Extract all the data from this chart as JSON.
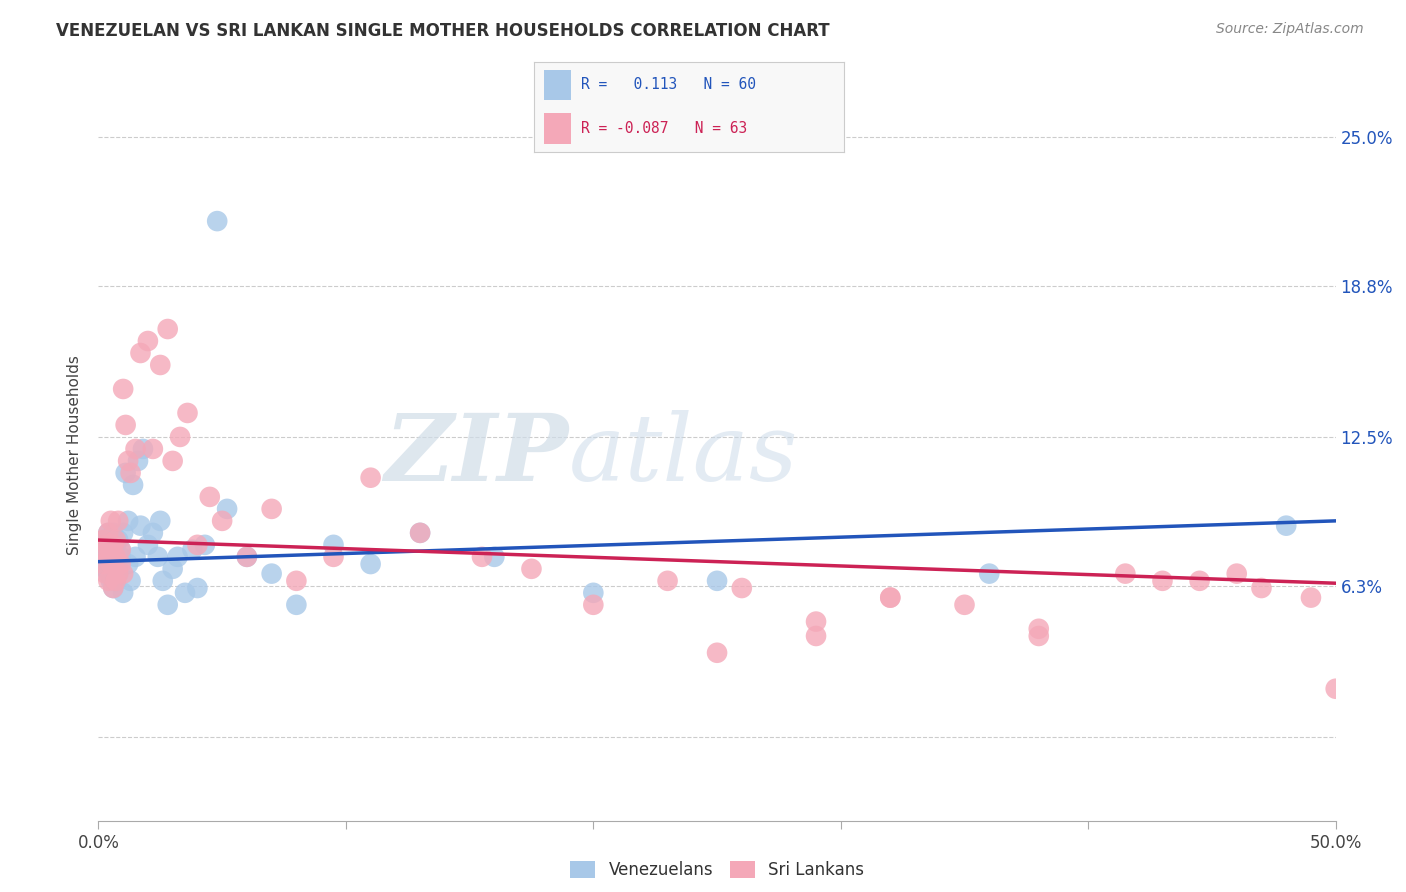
{
  "title": "VENEZUELAN VS SRI LANKAN SINGLE MOTHER HOUSEHOLDS CORRELATION CHART",
  "source": "Source: ZipAtlas.com",
  "ylabel": "Single Mother Households",
  "venezuelan_color": "#a8c8e8",
  "srilanka_color": "#f4a8b8",
  "venezuelan_line_color": "#2255bb",
  "srilanka_line_color": "#cc2255",
  "watermark_zip": "ZIP",
  "watermark_atlas": "atlas",
  "venezuelan_label": "Venezuelans",
  "srilanka_label": "Sri Lankans",
  "xlim": [
    0.0,
    0.5
  ],
  "ylim": [
    -0.035,
    0.27
  ],
  "ytick_positions": [
    0.0,
    0.063,
    0.125,
    0.188,
    0.25
  ],
  "ytick_labels": [
    "",
    "6.3%",
    "12.5%",
    "18.8%",
    "25.0%"
  ],
  "xtick_positions": [
    0.0,
    0.1,
    0.2,
    0.3,
    0.4,
    0.5
  ],
  "xtick_labels": [
    "0.0%",
    "",
    "",
    "",
    "",
    "50.0%"
  ],
  "ven_trend_x0": 0.0,
  "ven_trend_y0": 0.073,
  "ven_trend_x1": 0.5,
  "ven_trend_y1": 0.09,
  "sri_trend_x0": 0.0,
  "sri_trend_y0": 0.082,
  "sri_trend_x1": 0.5,
  "sri_trend_y1": 0.064,
  "venezuelan_x": [
    0.001,
    0.002,
    0.002,
    0.003,
    0.003,
    0.003,
    0.004,
    0.004,
    0.004,
    0.005,
    0.005,
    0.005,
    0.006,
    0.006,
    0.006,
    0.006,
    0.007,
    0.007,
    0.007,
    0.008,
    0.008,
    0.008,
    0.009,
    0.009,
    0.01,
    0.01,
    0.011,
    0.012,
    0.012,
    0.013,
    0.014,
    0.015,
    0.016,
    0.017,
    0.018,
    0.02,
    0.022,
    0.024,
    0.025,
    0.026,
    0.028,
    0.03,
    0.032,
    0.035,
    0.038,
    0.04,
    0.043,
    0.048,
    0.052,
    0.06,
    0.07,
    0.08,
    0.095,
    0.11,
    0.13,
    0.16,
    0.2,
    0.25,
    0.36,
    0.48
  ],
  "venezuelan_y": [
    0.078,
    0.075,
    0.082,
    0.07,
    0.08,
    0.072,
    0.068,
    0.085,
    0.075,
    0.065,
    0.08,
    0.072,
    0.062,
    0.07,
    0.078,
    0.085,
    0.065,
    0.075,
    0.08,
    0.068,
    0.082,
    0.07,
    0.075,
    0.078,
    0.06,
    0.085,
    0.11,
    0.072,
    0.09,
    0.065,
    0.105,
    0.075,
    0.115,
    0.088,
    0.12,
    0.08,
    0.085,
    0.075,
    0.09,
    0.065,
    0.055,
    0.07,
    0.075,
    0.06,
    0.078,
    0.062,
    0.08,
    0.215,
    0.095,
    0.075,
    0.068,
    0.055,
    0.08,
    0.072,
    0.085,
    0.075,
    0.06,
    0.065,
    0.068,
    0.088
  ],
  "srilanka_x": [
    0.001,
    0.002,
    0.002,
    0.003,
    0.003,
    0.004,
    0.004,
    0.004,
    0.005,
    0.005,
    0.005,
    0.006,
    0.006,
    0.007,
    0.007,
    0.007,
    0.008,
    0.008,
    0.009,
    0.009,
    0.01,
    0.01,
    0.011,
    0.012,
    0.013,
    0.015,
    0.017,
    0.02,
    0.022,
    0.025,
    0.028,
    0.03,
    0.033,
    0.036,
    0.04,
    0.045,
    0.05,
    0.06,
    0.07,
    0.08,
    0.095,
    0.11,
    0.13,
    0.155,
    0.175,
    0.2,
    0.23,
    0.26,
    0.29,
    0.32,
    0.35,
    0.38,
    0.415,
    0.445,
    0.47,
    0.49,
    0.5,
    0.32,
    0.25,
    0.43,
    0.38,
    0.46,
    0.29
  ],
  "srilanka_y": [
    0.078,
    0.082,
    0.072,
    0.08,
    0.068,
    0.085,
    0.075,
    0.065,
    0.09,
    0.072,
    0.078,
    0.062,
    0.08,
    0.065,
    0.075,
    0.082,
    0.068,
    0.09,
    0.072,
    0.078,
    0.145,
    0.068,
    0.13,
    0.115,
    0.11,
    0.12,
    0.16,
    0.165,
    0.12,
    0.155,
    0.17,
    0.115,
    0.125,
    0.135,
    0.08,
    0.1,
    0.09,
    0.075,
    0.095,
    0.065,
    0.075,
    0.108,
    0.085,
    0.075,
    0.07,
    0.055,
    0.065,
    0.062,
    0.048,
    0.058,
    0.055,
    0.042,
    0.068,
    0.065,
    0.062,
    0.058,
    0.02,
    0.058,
    0.035,
    0.065,
    0.045,
    0.068,
    0.042
  ]
}
